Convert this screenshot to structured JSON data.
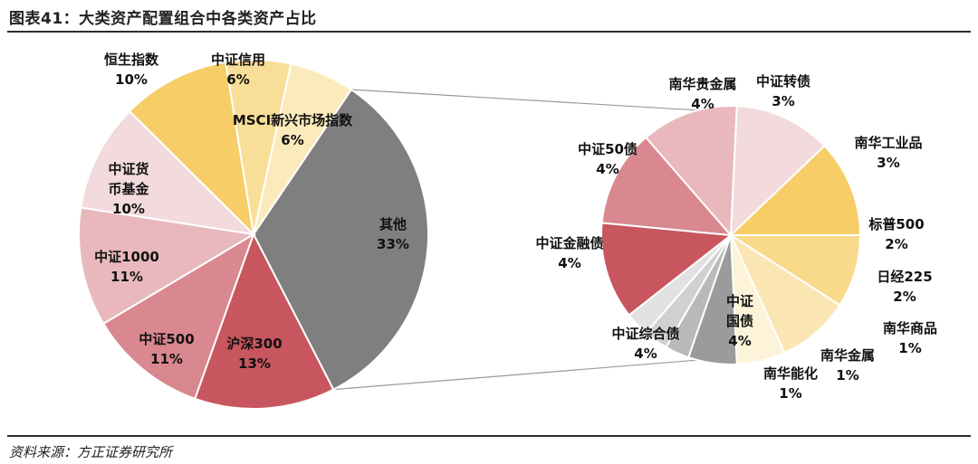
{
  "title": "图表41：大类资产配置组合中各类资产占比",
  "source": "资料来源：方正证券研究所",
  "chart_data": {
    "type": "pie",
    "subtype": "pie-of-pie",
    "main": {
      "slices": [
        {
          "name": "其他",
          "value": 33,
          "color": "#7f7f7f"
        },
        {
          "name": "沪深300",
          "value": 13,
          "color": "#c8565f"
        },
        {
          "name": "中证500",
          "value": 11,
          "color": "#d9888f"
        },
        {
          "name": "中证1000",
          "value": 11,
          "color": "#e8b8bc"
        },
        {
          "name": "中证货币基金",
          "value": 10,
          "color": "#f2dadd"
        },
        {
          "name": "恒生指数",
          "value": 10,
          "color": "#f6cd67"
        },
        {
          "name": "中证信用",
          "value": 6,
          "color": "#f9de98"
        },
        {
          "name": "MSCI新兴市场指数",
          "value": 6,
          "color": "#fbeabb"
        }
      ],
      "labels": [
        {
          "lines": [
            "其他",
            "33%"
          ]
        },
        {
          "lines": [
            "沪深300",
            "13%"
          ]
        },
        {
          "lines": [
            "中证500",
            "11%"
          ]
        },
        {
          "lines": [
            "中证1000",
            "11%"
          ]
        },
        {
          "lines": [
            "中证货",
            "币基金",
            "10%"
          ]
        },
        {
          "lines": [
            "恒生指数",
            "10%"
          ]
        },
        {
          "lines": [
            "中证信用",
            "6%"
          ]
        },
        {
          "lines": [
            "MSCI新兴市场指数",
            "6%"
          ]
        }
      ]
    },
    "secondary": {
      "slices": [
        {
          "name": "中证转债",
          "value": 3,
          "color": "#f9d98a"
        },
        {
          "name": "南华工业品",
          "value": 3,
          "color": "#fbe6b3"
        },
        {
          "name": "标普500",
          "value": 2,
          "color": "#fdf3d9"
        },
        {
          "name": "日经225",
          "value": 2,
          "color": "#9b9b9b"
        },
        {
          "name": "南华商品",
          "value": 1,
          "color": "#b9b9b9"
        },
        {
          "name": "南华金属",
          "value": 1,
          "color": "#d0d0d0"
        },
        {
          "name": "南华能化",
          "value": 1,
          "color": "#e2e2e2"
        },
        {
          "name": "中证国债",
          "value": 4,
          "color": "#c8565f"
        },
        {
          "name": "中证综合债",
          "value": 4,
          "color": "#d9888f"
        },
        {
          "name": "中证金融债",
          "value": 4,
          "color": "#e8b8bc"
        },
        {
          "name": "中证50债",
          "value": 4,
          "color": "#f2dadd"
        },
        {
          "name": "南华贵金属",
          "value": 4,
          "color": "#f6cd67"
        }
      ],
      "labels": [
        {
          "lines": [
            "中证转债",
            "3%"
          ]
        },
        {
          "lines": [
            "南华工业品",
            "3%"
          ]
        },
        {
          "lines": [
            "标普500",
            "2%"
          ]
        },
        {
          "lines": [
            "日经225",
            "2%"
          ]
        },
        {
          "lines": [
            "南华商品",
            "1%"
          ]
        },
        {
          "lines": [
            "南华金属",
            "1%"
          ]
        },
        {
          "lines": [
            "南华能化",
            "1%"
          ]
        },
        {
          "lines": [
            "中证",
            "国债",
            "4%"
          ]
        },
        {
          "lines": [
            "中证综合债",
            "4%"
          ]
        },
        {
          "lines": [
            "中证金融债",
            "4%"
          ]
        },
        {
          "lines": [
            "中证50债",
            "4%"
          ]
        },
        {
          "lines": [
            "南华贵金属",
            "4%"
          ]
        }
      ]
    }
  }
}
